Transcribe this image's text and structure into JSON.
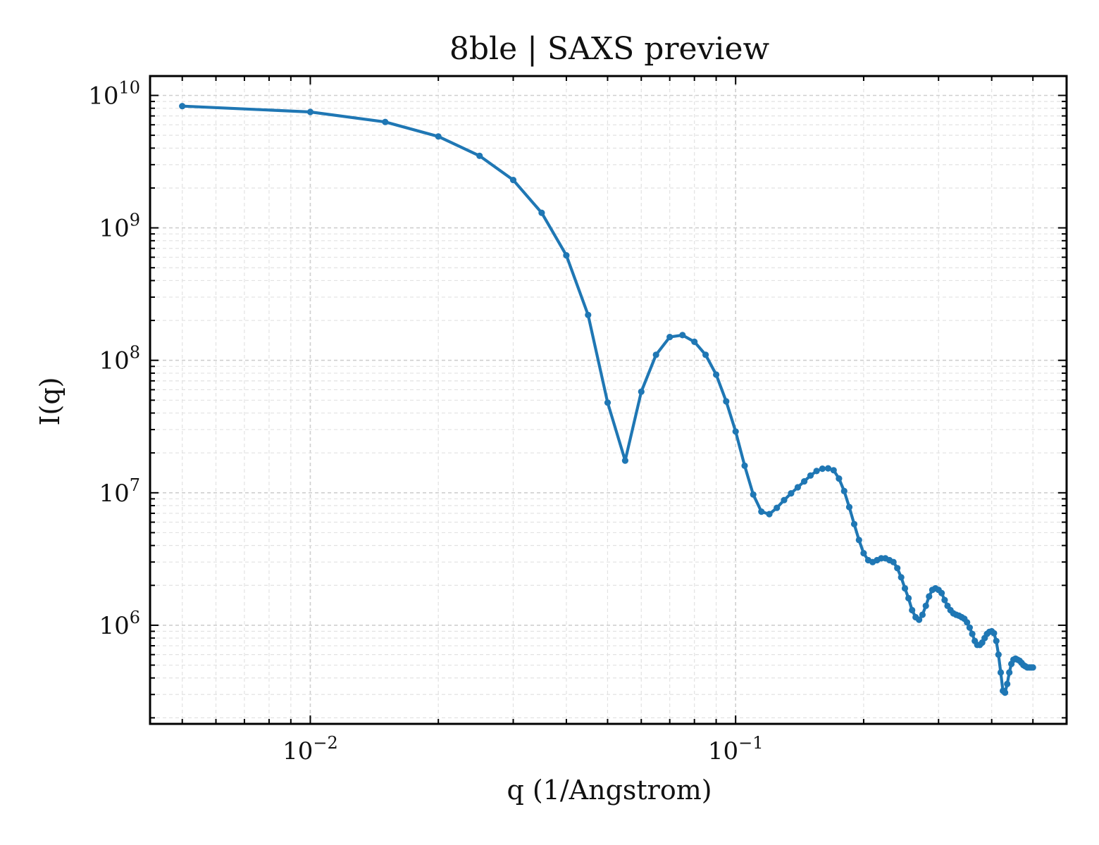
{
  "chart_data": {
    "type": "line",
    "title": "8ble | SAXS preview",
    "xlabel": "q (1/Angstrom)",
    "ylabel": "I(q)",
    "xscale": "log",
    "yscale": "log",
    "xlim": [
      0.0042,
      0.6
    ],
    "ylim": [
      180000,
      14000000000
    ],
    "grid": "on (major and minor, dashed)",
    "legend": "none",
    "line_color": "#1f77b4",
    "marker": "circle",
    "x_ticks": [
      {
        "value": 0.01,
        "base": "10",
        "exp": "−2"
      },
      {
        "value": 0.1,
        "base": "10",
        "exp": "−1"
      }
    ],
    "y_ticks": [
      {
        "value": 1000000,
        "base": "10",
        "exp": "6"
      },
      {
        "value": 10000000,
        "base": "10",
        "exp": "7"
      },
      {
        "value": 100000000,
        "base": "10",
        "exp": "8"
      },
      {
        "value": 1000000000,
        "base": "10",
        "exp": "9"
      },
      {
        "value": 10000000000,
        "base": "10",
        "exp": "10"
      }
    ],
    "series": [
      {
        "x": [
          0.005,
          0.01,
          0.015,
          0.02,
          0.025,
          0.03,
          0.035,
          0.04,
          0.045,
          0.05,
          0.055,
          0.06,
          0.065,
          0.07,
          0.075,
          0.08,
          0.085,
          0.09,
          0.095,
          0.1,
          0.105,
          0.11,
          0.115,
          0.12,
          0.125,
          0.13,
          0.135,
          0.14,
          0.145,
          0.15,
          0.155,
          0.16,
          0.165,
          0.17,
          0.175,
          0.18,
          0.185,
          0.19,
          0.195,
          0.2,
          0.205,
          0.21,
          0.215,
          0.22,
          0.225,
          0.23,
          0.235,
          0.24,
          0.245,
          0.25,
          0.255,
          0.26,
          0.265,
          0.27,
          0.275,
          0.28,
          0.285,
          0.29,
          0.295,
          0.3,
          0.305,
          0.31,
          0.315,
          0.32,
          0.325,
          0.33,
          0.335,
          0.34,
          0.345,
          0.35,
          0.355,
          0.36,
          0.365,
          0.37,
          0.375,
          0.38,
          0.385,
          0.39,
          0.395,
          0.4,
          0.405,
          0.41,
          0.415,
          0.42,
          0.425,
          0.43,
          0.435,
          0.44,
          0.445,
          0.45,
          0.455,
          0.46,
          0.465,
          0.47,
          0.475,
          0.48,
          0.485,
          0.49,
          0.495,
          0.5
        ],
        "y": [
          8300000000,
          7500000000,
          6300000000,
          4900000000,
          3500000000,
          2300000000,
          1300000000,
          620000000,
          220000000,
          48000000,
          17500000,
          58000000,
          110000000,
          150000000,
          155000000,
          138000000,
          110000000,
          78000000,
          49000000,
          29000000,
          16000000,
          9700000,
          7200000,
          6900000,
          7700000,
          8800000,
          9900000,
          11000000,
          12200000,
          13500000,
          14600000,
          15200000,
          15300000,
          14800000,
          12800000,
          10300000,
          7800000,
          5800000,
          4400000,
          3500000,
          3100000,
          3000000,
          3100000,
          3200000,
          3200000,
          3100000,
          3000000,
          2700000,
          2300000,
          1900000,
          1600000,
          1300000,
          1150000,
          1100000,
          1200000,
          1400000,
          1650000,
          1850000,
          1900000,
          1850000,
          1750000,
          1550000,
          1400000,
          1300000,
          1230000,
          1200000,
          1180000,
          1150000,
          1120000,
          1050000,
          960000,
          860000,
          760000,
          710000,
          710000,
          740000,
          800000,
          860000,
          890000,
          900000,
          870000,
          760000,
          600000,
          440000,
          320000,
          310000,
          360000,
          440000,
          510000,
          550000,
          560000,
          550000,
          540000,
          520000,
          500000,
          490000,
          480000,
          480000,
          480000,
          480000
        ]
      }
    ]
  }
}
